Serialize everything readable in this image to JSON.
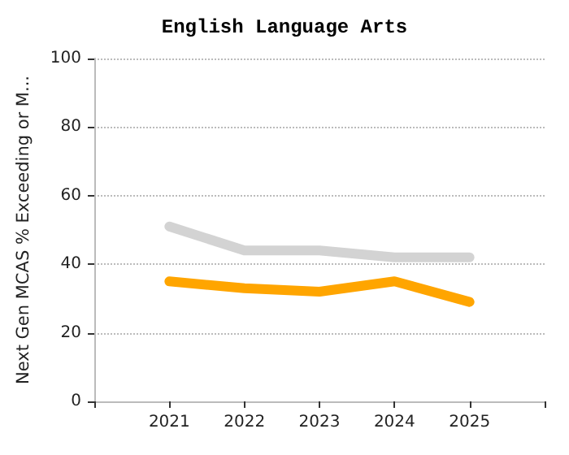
{
  "chart_data": {
    "type": "line",
    "title": "English Language Arts",
    "ylabel": "Next Gen MCAS % Exceeding or M...",
    "x": [
      2021,
      2022,
      2023,
      2024,
      2025
    ],
    "xlim": [
      2020,
      2026
    ],
    "xticks": [
      {
        "value": 2020,
        "label": null
      },
      2021,
      2022,
      2023,
      2024,
      2025,
      {
        "value": 2026,
        "label": null
      }
    ],
    "ylim": [
      0,
      100
    ],
    "yticks": [
      0,
      20,
      40,
      60,
      80,
      100
    ],
    "grid": "y",
    "marker": "none",
    "line_style": "solid",
    "series": [
      {
        "color": "#d3d3d3",
        "values": [
          51,
          44,
          44,
          42,
          42
        ]
      },
      {
        "color": "#ffa500",
        "values": [
          35,
          33,
          32,
          35,
          29
        ]
      }
    ]
  }
}
